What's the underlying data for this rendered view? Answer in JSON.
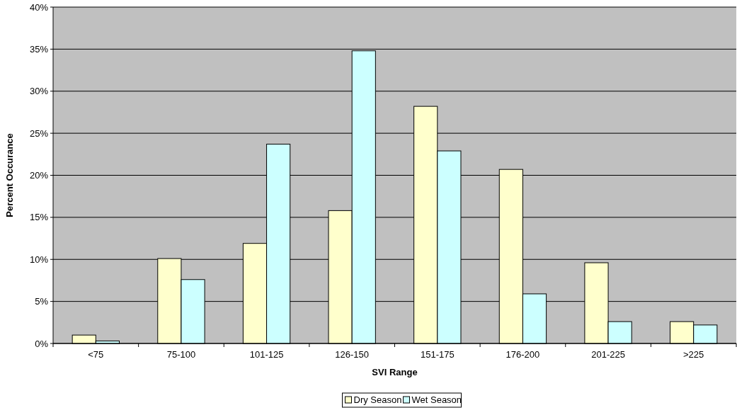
{
  "chart_data": {
    "type": "bar",
    "xlabel": "SVI Range",
    "ylabel": "Percent Occurance",
    "categories": [
      "<75",
      "75-100",
      "101-125",
      "126-150",
      "151-175",
      "176-200",
      "201-225",
      ">225"
    ],
    "series": [
      {
        "name": "Dry Season",
        "color": "#ffffcc",
        "values": [
          1.0,
          10.1,
          11.9,
          15.8,
          28.2,
          20.7,
          9.6,
          2.6
        ]
      },
      {
        "name": "Wet Season",
        "color": "#ccffff",
        "values": [
          0.3,
          7.6,
          23.7,
          34.8,
          22.9,
          5.9,
          2.6,
          2.2
        ]
      }
    ],
    "ylim": [
      0,
      40
    ],
    "yticks": [
      {
        "value": 0,
        "label": "0%"
      },
      {
        "value": 5,
        "label": "5%"
      },
      {
        "value": 10,
        "label": "10%"
      },
      {
        "value": 15,
        "label": "15%"
      },
      {
        "value": 20,
        "label": "20%"
      },
      {
        "value": 25,
        "label": "25%"
      },
      {
        "value": 30,
        "label": "30%"
      },
      {
        "value": 35,
        "label": "35%"
      },
      {
        "value": 40,
        "label": "40%"
      }
    ],
    "grid": "y",
    "legend": "bottom"
  }
}
